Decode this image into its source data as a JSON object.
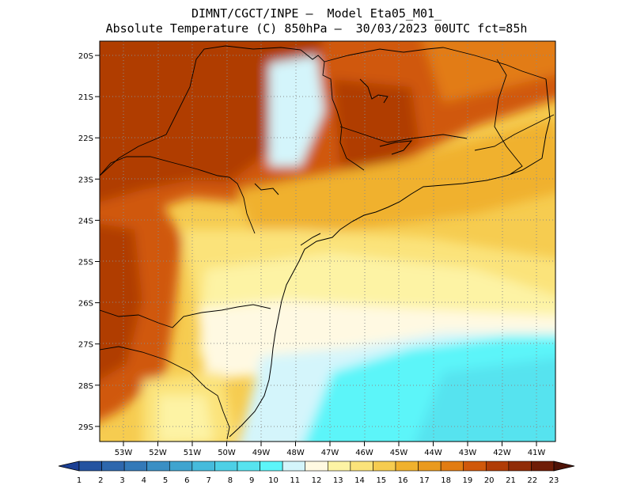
{
  "header": {
    "line1": "DIMNT/CGCT/INPE –  Model Eta05_M01_",
    "line2": "Absolute Temperature (C) 850hPa –  30/03/2023 00UTC fct=85h"
  },
  "map": {
    "lat_labels": [
      "20S",
      "21S",
      "22S",
      "23S",
      "24S",
      "25S",
      "26S",
      "27S",
      "28S",
      "29S"
    ],
    "lon_labels": [
      "53W",
      "52W",
      "51W",
      "50W",
      "49W",
      "48W",
      "47W",
      "46W",
      "45W",
      "44W",
      "43W",
      "42W",
      "41W"
    ]
  },
  "colorbar": {
    "labels": [
      "1",
      "2",
      "3",
      "4",
      "5",
      "6",
      "7",
      "8",
      "9",
      "10",
      "11",
      "12",
      "13",
      "14",
      "15",
      "16",
      "17",
      "18",
      "19",
      "20",
      "21",
      "22",
      "23"
    ],
    "colors": [
      "#1b3f94",
      "#2453a0",
      "#2e67ad",
      "#3379b8",
      "#3a8fc4",
      "#3fa4cf",
      "#46bbdc",
      "#4dd0e6",
      "#57e3ef",
      "#5cf5f9",
      "#d4f5fb",
      "#fff9e2",
      "#fdf3a4",
      "#fbe37a",
      "#f6cc50",
      "#f0b12d",
      "#ea9a1e",
      "#e27c12",
      "#d0580a",
      "#b03c06",
      "#902c07",
      "#6f1d07",
      "#4e1307"
    ]
  }
}
